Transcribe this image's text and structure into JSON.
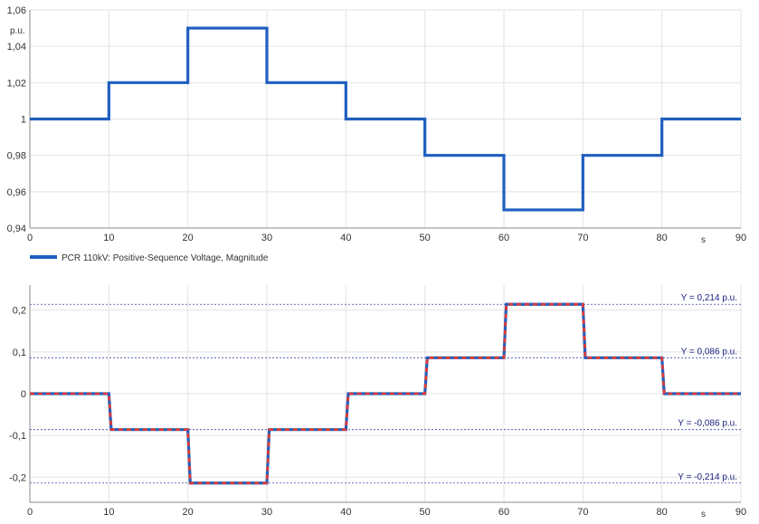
{
  "chart_data": [
    {
      "type": "line",
      "step": true,
      "ylabel": "p.u.",
      "xlabel": "s",
      "xlim": [
        0,
        90
      ],
      "ylim": [
        0.94,
        1.06
      ],
      "x_ticks": [
        0,
        10,
        20,
        30,
        40,
        50,
        60,
        70,
        80,
        90
      ],
      "x_tick_labels": [
        "0",
        "10",
        "20",
        "30",
        "40",
        "50",
        "60",
        "70",
        "80",
        "90"
      ],
      "y_ticks": [
        0.94,
        0.96,
        0.98,
        1.0,
        1.02,
        1.04,
        1.06
      ],
      "y_tick_labels": [
        "0,94",
        "0,96",
        "0,98",
        "1",
        "1,02",
        "1,04",
        "1,06"
      ],
      "grid": true,
      "legend_position": "bottom-left",
      "series": [
        {
          "name": "PCR 110kV: Positive-Sequence Voltage, Magnitude",
          "color": "#1f5fbf",
          "x": [
            0,
            10,
            10,
            20,
            20,
            30,
            30,
            40,
            40,
            50,
            50,
            60,
            60,
            70,
            70,
            80,
            80,
            90
          ],
          "y": [
            1.0,
            1.0,
            1.02,
            1.02,
            1.05,
            1.05,
            1.02,
            1.02,
            1.0,
            1.0,
            0.98,
            0.98,
            0.95,
            0.95,
            0.98,
            0.98,
            1.0,
            1.0
          ]
        }
      ]
    },
    {
      "type": "line",
      "step": true,
      "xlabel": "s",
      "xlim": [
        0,
        90
      ],
      "ylim": [
        -0.26,
        0.26
      ],
      "x_ticks": [
        0,
        10,
        20,
        30,
        40,
        50,
        60,
        70,
        80,
        90
      ],
      "x_tick_labels": [
        "0",
        "10",
        "20",
        "30",
        "40",
        "50",
        "60",
        "70",
        "80",
        "90"
      ],
      "y_ticks": [
        -0.2,
        -0.1,
        0,
        0.1,
        0.2
      ],
      "y_tick_labels": [
        "-0,2",
        "-0,1",
        "0",
        "0,1",
        "0,2"
      ],
      "grid": true,
      "reference_lines": [
        {
          "y": 0.214,
          "label": "Y = 0,214 p.u."
        },
        {
          "y": 0.086,
          "label": "Y = 0,086 p.u."
        },
        {
          "y": -0.086,
          "label": "Y = -0,086 p.u."
        },
        {
          "y": -0.214,
          "label": "Y = -0,214 p.u."
        }
      ],
      "series": [
        {
          "color": "#1f5fbf",
          "style": "solid",
          "x": [
            0,
            10,
            10.3,
            20,
            20.3,
            30,
            30.3,
            40,
            40.3,
            50,
            50.3,
            60,
            60.3,
            70,
            70.3,
            80,
            80.3,
            90
          ],
          "y": [
            0,
            0,
            -0.086,
            -0.086,
            -0.214,
            -0.214,
            -0.086,
            -0.086,
            0,
            0,
            0.086,
            0.086,
            0.214,
            0.214,
            0.086,
            0.086,
            0,
            0
          ]
        },
        {
          "color": "#e53935",
          "style": "dashed",
          "x": [
            0,
            10,
            10.3,
            20,
            20.3,
            30,
            30.3,
            40,
            40.3,
            50,
            50.3,
            60,
            60.3,
            70,
            70.3,
            80,
            80.3,
            90
          ],
          "y": [
            0,
            0,
            -0.086,
            -0.086,
            -0.214,
            -0.214,
            -0.086,
            -0.086,
            0,
            0,
            0.086,
            0.086,
            0.214,
            0.214,
            0.086,
            0.086,
            0,
            0
          ]
        }
      ]
    }
  ]
}
